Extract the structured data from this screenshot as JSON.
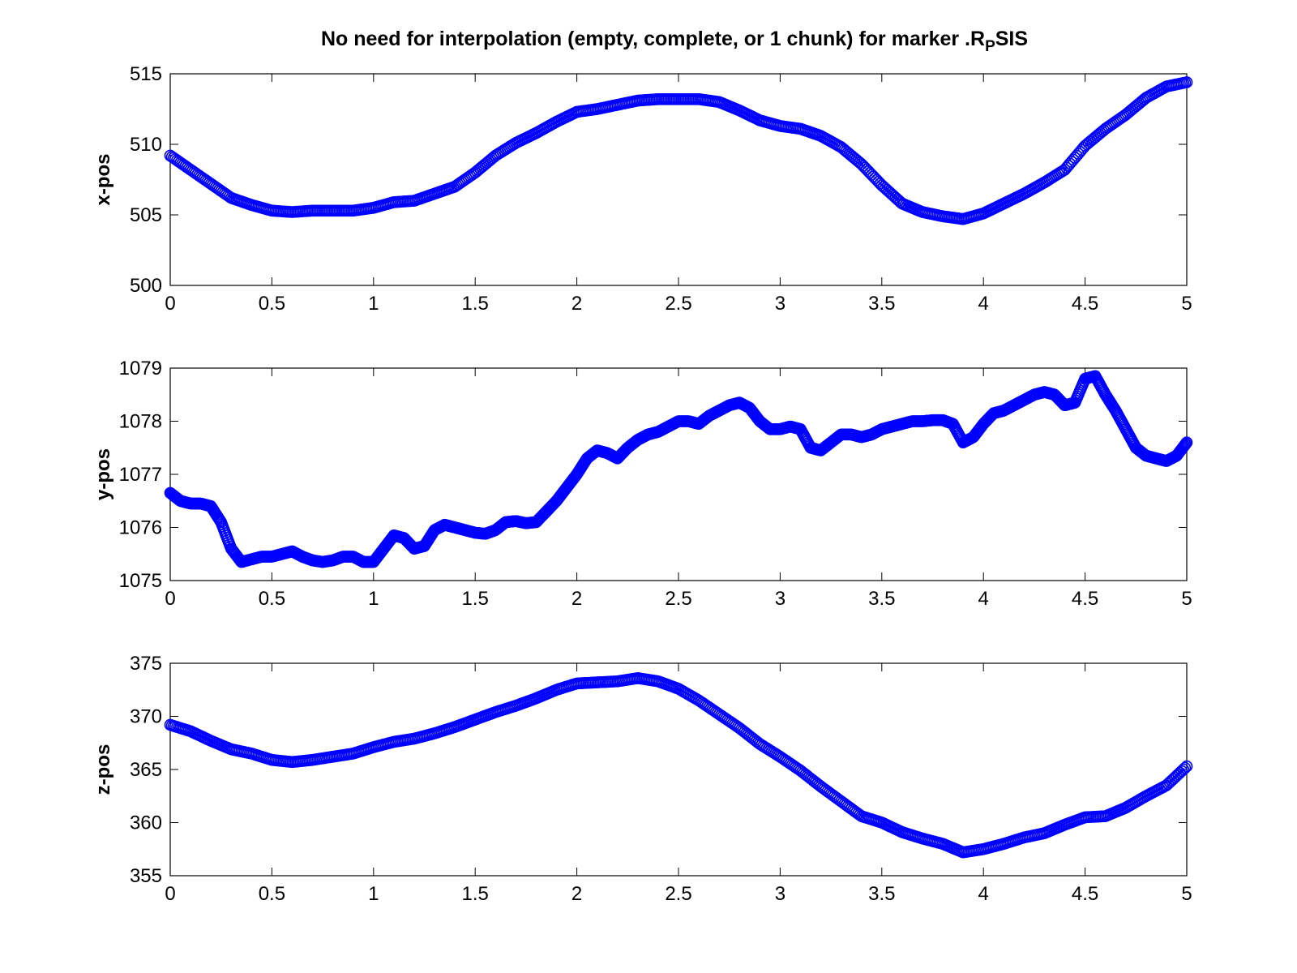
{
  "figure_title": {
    "main": "No need for interpolation (empty, complete, or 1 chunk) for marker .R",
    "subscript": "P",
    "tail": "SIS"
  },
  "colors": {
    "series": "#0000ff",
    "axes": "#000000",
    "background": "#ffffff"
  },
  "chart_data": [
    {
      "type": "scatter",
      "marker": "circle",
      "title": "",
      "xlabel": "",
      "ylabel": "x-pos",
      "xlim": [
        0,
        5
      ],
      "ylim": [
        500,
        515
      ],
      "xticks": [
        "0",
        "0.5",
        "1",
        "1.5",
        "2",
        "2.5",
        "3",
        "3.5",
        "4",
        "4.5",
        "5"
      ],
      "yticks": [
        "500",
        "505",
        "510",
        "515"
      ],
      "grid": false,
      "x": [
        0,
        0.1,
        0.2,
        0.3,
        0.4,
        0.5,
        0.6,
        0.7,
        0.8,
        0.9,
        1.0,
        1.1,
        1.2,
        1.3,
        1.4,
        1.5,
        1.6,
        1.7,
        1.8,
        1.9,
        2.0,
        2.1,
        2.2,
        2.3,
        2.4,
        2.5,
        2.6,
        2.7,
        2.8,
        2.9,
        3.0,
        3.1,
        3.2,
        3.3,
        3.4,
        3.5,
        3.6,
        3.7,
        3.8,
        3.9,
        4.0,
        4.1,
        4.2,
        4.3,
        4.4,
        4.5,
        4.6,
        4.7,
        4.8,
        4.9,
        5.0
      ],
      "y": [
        509.2,
        508.2,
        507.2,
        506.2,
        505.7,
        505.3,
        505.2,
        505.3,
        505.3,
        505.3,
        505.5,
        505.9,
        506.0,
        506.5,
        507.0,
        508.0,
        509.2,
        510.1,
        510.8,
        511.6,
        512.3,
        512.5,
        512.8,
        513.1,
        513.2,
        513.2,
        513.2,
        513.0,
        512.4,
        511.7,
        511.3,
        511.1,
        510.6,
        509.8,
        508.6,
        507.1,
        505.8,
        505.2,
        504.9,
        504.7,
        505.1,
        505.8,
        506.5,
        507.3,
        508.2,
        509.9,
        511.1,
        512.1,
        513.3,
        514.1,
        514.4
      ]
    },
    {
      "type": "scatter",
      "marker": "circle",
      "title": "",
      "xlabel": "",
      "ylabel": "y-pos",
      "xlim": [
        0,
        5
      ],
      "ylim": [
        1075,
        1079
      ],
      "xticks": [
        "0",
        "0.5",
        "1",
        "1.5",
        "2",
        "2.5",
        "3",
        "3.5",
        "4",
        "4.5",
        "5"
      ],
      "yticks": [
        "1075",
        "1076",
        "1077",
        "1078",
        "1079"
      ],
      "grid": false,
      "x": [
        0,
        0.05,
        0.1,
        0.15,
        0.2,
        0.25,
        0.3,
        0.35,
        0.4,
        0.45,
        0.5,
        0.55,
        0.6,
        0.65,
        0.7,
        0.75,
        0.8,
        0.85,
        0.9,
        0.95,
        1.0,
        1.05,
        1.1,
        1.15,
        1.2,
        1.25,
        1.3,
        1.35,
        1.4,
        1.45,
        1.5,
        1.55,
        1.6,
        1.65,
        1.7,
        1.75,
        1.8,
        1.85,
        1.9,
        1.95,
        2.0,
        2.05,
        2.1,
        2.15,
        2.2,
        2.25,
        2.3,
        2.35,
        2.4,
        2.45,
        2.5,
        2.55,
        2.6,
        2.65,
        2.7,
        2.75,
        2.8,
        2.85,
        2.9,
        2.95,
        3.0,
        3.05,
        3.1,
        3.15,
        3.2,
        3.25,
        3.3,
        3.35,
        3.4,
        3.45,
        3.5,
        3.55,
        3.6,
        3.65,
        3.7,
        3.75,
        3.8,
        3.85,
        3.9,
        3.95,
        4.0,
        4.05,
        4.1,
        4.15,
        4.2,
        4.25,
        4.3,
        4.35,
        4.4,
        4.45,
        4.5,
        4.55,
        4.6,
        4.65,
        4.7,
        4.75,
        4.8,
        4.85,
        4.9,
        4.95,
        5.0
      ],
      "y": [
        1076.65,
        1076.5,
        1076.45,
        1076.45,
        1076.4,
        1076.1,
        1075.6,
        1075.35,
        1075.4,
        1075.45,
        1075.45,
        1075.5,
        1075.55,
        1075.45,
        1075.38,
        1075.35,
        1075.38,
        1075.45,
        1075.45,
        1075.35,
        1075.35,
        1075.6,
        1075.85,
        1075.8,
        1075.6,
        1075.65,
        1075.95,
        1076.05,
        1076.0,
        1075.95,
        1075.9,
        1075.88,
        1075.95,
        1076.1,
        1076.12,
        1076.08,
        1076.1,
        1076.3,
        1076.5,
        1076.75,
        1077.0,
        1077.3,
        1077.45,
        1077.4,
        1077.3,
        1077.5,
        1077.65,
        1077.75,
        1077.8,
        1077.9,
        1078.0,
        1078.0,
        1077.95,
        1078.1,
        1078.2,
        1078.3,
        1078.35,
        1078.25,
        1078.0,
        1077.85,
        1077.85,
        1077.9,
        1077.85,
        1077.5,
        1077.45,
        1077.6,
        1077.75,
        1077.75,
        1077.7,
        1077.75,
        1077.85,
        1077.9,
        1077.95,
        1078.0,
        1078.0,
        1078.02,
        1078.02,
        1077.95,
        1077.6,
        1077.7,
        1077.95,
        1078.15,
        1078.2,
        1078.3,
        1078.4,
        1078.5,
        1078.55,
        1078.5,
        1078.3,
        1078.35,
        1078.8,
        1078.85,
        1078.5,
        1078.2,
        1077.85,
        1077.5,
        1077.35,
        1077.3,
        1077.25,
        1077.35,
        1077.6
      ]
    },
    {
      "type": "scatter",
      "marker": "circle",
      "title": "",
      "xlabel": "",
      "ylabel": "z-pos",
      "xlim": [
        0,
        5
      ],
      "ylim": [
        355,
        375
      ],
      "xticks": [
        "0",
        "0.5",
        "1",
        "1.5",
        "2",
        "2.5",
        "3",
        "3.5",
        "4",
        "4.5",
        "5"
      ],
      "yticks": [
        "355",
        "360",
        "365",
        "370",
        "375"
      ],
      "grid": false,
      "x": [
        0,
        0.1,
        0.2,
        0.3,
        0.4,
        0.5,
        0.6,
        0.7,
        0.8,
        0.9,
        1.0,
        1.1,
        1.2,
        1.3,
        1.4,
        1.5,
        1.6,
        1.7,
        1.8,
        1.9,
        2.0,
        2.1,
        2.2,
        2.3,
        2.4,
        2.5,
        2.6,
        2.7,
        2.8,
        2.9,
        3.0,
        3.1,
        3.2,
        3.3,
        3.4,
        3.5,
        3.6,
        3.7,
        3.8,
        3.9,
        4.0,
        4.1,
        4.2,
        4.3,
        4.4,
        4.5,
        4.6,
        4.7,
        4.8,
        4.9,
        5.0
      ],
      "y": [
        369.2,
        368.6,
        367.7,
        366.9,
        366.5,
        365.9,
        365.7,
        365.9,
        366.2,
        366.5,
        367.1,
        367.6,
        367.9,
        368.4,
        369.0,
        369.7,
        370.4,
        371.0,
        371.7,
        372.5,
        373.1,
        373.2,
        373.3,
        373.6,
        373.3,
        372.6,
        371.5,
        370.2,
        368.9,
        367.4,
        366.2,
        364.9,
        363.4,
        362.0,
        360.6,
        360.0,
        359.1,
        358.5,
        358.0,
        357.2,
        357.5,
        358.0,
        358.6,
        359.0,
        359.8,
        360.5,
        360.6,
        361.4,
        362.5,
        363.5,
        365.3
      ]
    }
  ]
}
